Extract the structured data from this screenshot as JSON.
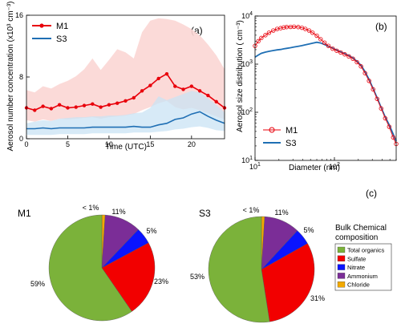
{
  "panels": {
    "a": "(a)",
    "b": "(b)",
    "c": "(c)"
  },
  "colors": {
    "m1": "#e8000b",
    "s3": "#1f6fb4",
    "m1_band": "#fbd6d4",
    "s3_band": "#c9e3f4",
    "overlap_band": "#d6cfe4",
    "total_organics": "#7bb23a",
    "sulfate": "#f20000",
    "nitrate": "#0a14ff",
    "ammonium": "#7b2d97",
    "chloride": "#f2a900"
  },
  "chart_data": [
    {
      "type": "line",
      "panel": "(a)",
      "xlabel": "Time (UTC)",
      "ylabel": "Aerosol number concentration (x10³ cm⁻³)",
      "xlim": [
        0,
        24
      ],
      "ylim": [
        0,
        16
      ],
      "xticks": [
        0,
        5,
        10,
        15,
        20
      ],
      "yticks": [
        0,
        8,
        16
      ],
      "legend": "top-left",
      "series": [
        {
          "name": "M1",
          "x": [
            0,
            1,
            2,
            3,
            4,
            5,
            6,
            7,
            8,
            9,
            10,
            11,
            12,
            13,
            14,
            15,
            16,
            17,
            18,
            19,
            20,
            21,
            22,
            23,
            24
          ],
          "y": [
            4.0,
            3.7,
            4.2,
            3.9,
            4.4,
            4.0,
            4.1,
            4.3,
            4.5,
            4.1,
            4.4,
            4.6,
            4.9,
            5.3,
            6.2,
            6.9,
            7.8,
            8.4,
            6.8,
            6.4,
            6.8,
            6.2,
            5.6,
            4.8,
            4.0
          ],
          "band_upper": [
            6.3,
            6.0,
            6.8,
            6.5,
            7.1,
            7.5,
            8.1,
            9.0,
            10.4,
            8.9,
            10.2,
            11.6,
            11.2,
            10.4,
            13.8,
            15.3,
            15.6,
            15.5,
            15.3,
            14.8,
            14.2,
            13.4,
            12.2,
            10.8,
            9.0
          ],
          "band_lower": [
            2.4,
            2.2,
            2.5,
            2.3,
            2.6,
            2.5,
            2.6,
            2.7,
            2.8,
            2.6,
            2.8,
            2.9,
            3.0,
            3.2,
            3.7,
            4.1,
            4.6,
            4.9,
            4.1,
            3.8,
            4.0,
            3.7,
            3.3,
            2.9,
            2.5
          ]
        },
        {
          "name": "S3",
          "x": [
            0,
            1,
            2,
            3,
            4,
            5,
            6,
            7,
            8,
            9,
            10,
            11,
            12,
            13,
            14,
            15,
            16,
            17,
            18,
            19,
            20,
            21,
            22,
            23,
            24
          ],
          "y": [
            1.3,
            1.3,
            1.4,
            1.3,
            1.4,
            1.4,
            1.4,
            1.4,
            1.5,
            1.5,
            1.5,
            1.5,
            1.5,
            1.6,
            1.5,
            1.5,
            1.8,
            2.0,
            2.5,
            2.7,
            3.2,
            3.5,
            2.9,
            2.4,
            2.0
          ],
          "band_upper": [
            2.0,
            2.2,
            2.4,
            2.3,
            2.6,
            2.7,
            2.8,
            2.8,
            2.9,
            2.9,
            3.0,
            3.0,
            3.1,
            3.3,
            3.4,
            4.0,
            5.5,
            5.0,
            5.4,
            5.8,
            6.2,
            6.0,
            5.2,
            4.4,
            3.4
          ],
          "band_lower": [
            0.5,
            0.5,
            0.5,
            0.5,
            0.6,
            0.6,
            0.6,
            0.6,
            0.7,
            0.7,
            0.7,
            0.7,
            0.7,
            0.8,
            0.8,
            0.8,
            0.9,
            1.0,
            1.2,
            1.3,
            1.5,
            1.6,
            1.4,
            1.1,
            1.0
          ]
        }
      ]
    },
    {
      "type": "line",
      "panel": "(b)",
      "xlabel": "Diameter (nm)",
      "ylabel": "Aerosol size distribution ( cm⁻³)",
      "x_scale": "log",
      "y_scale": "log",
      "xlim": [
        10,
        600
      ],
      "ylim": [
        10,
        10000
      ],
      "xticks": [
        10,
        100
      ],
      "yticks": [
        10,
        100,
        1000,
        10000
      ],
      "legend": "bottom-left",
      "series": [
        {
          "name": "M1",
          "x": [
            10,
            11,
            12,
            13.5,
            15,
            17,
            19,
            21,
            23,
            25,
            28,
            31,
            35,
            39,
            43,
            48,
            53,
            60,
            67,
            75,
            84,
            95,
            107,
            120,
            135,
            152,
            171,
            192,
            216,
            243,
            273,
            307,
            345,
            388,
            436,
            490,
            550,
            600
          ],
          "y": [
            2400,
            3000,
            3500,
            4000,
            4500,
            5000,
            5400,
            5600,
            5800,
            5900,
            5950,
            6000,
            5900,
            5700,
            5400,
            5000,
            4500,
            3900,
            3300,
            2800,
            2400,
            2100,
            1900,
            1750,
            1600,
            1450,
            1300,
            1100,
            900,
            650,
            450,
            300,
            190,
            120,
            75,
            50,
            30,
            22
          ]
        },
        {
          "name": "S3",
          "x": [
            10,
            11,
            12,
            13.5,
            15,
            17,
            19,
            21,
            23,
            25,
            28,
            31,
            35,
            39,
            43,
            48,
            53,
            60,
            67,
            75,
            84,
            95,
            107,
            120,
            135,
            152,
            171,
            192,
            216,
            243,
            273,
            307,
            345,
            388,
            436,
            490,
            550,
            600
          ],
          "y": [
            1400,
            1550,
            1680,
            1780,
            1850,
            1920,
            1980,
            2020,
            2080,
            2130,
            2200,
            2270,
            2350,
            2430,
            2520,
            2620,
            2720,
            2850,
            2750,
            2550,
            2350,
            2150,
            1950,
            1800,
            1650,
            1500,
            1350,
            1150,
            950,
            700,
            480,
            310,
            200,
            125,
            80,
            55,
            35,
            25
          ]
        }
      ]
    },
    {
      "type": "pie",
      "panel": "(c)",
      "title": "M1",
      "categories": [
        "Total organics",
        "Sulfate",
        "Nitrate",
        "Ammonium",
        "Chloride"
      ],
      "values": [
        59,
        23,
        5,
        11,
        1
      ],
      "labels": [
        "59%",
        "23%",
        "5%",
        "11%",
        "< 1%"
      ]
    },
    {
      "type": "pie",
      "panel": "(c)",
      "title": "S3",
      "categories": [
        "Total organics",
        "Sulfate",
        "Nitrate",
        "Ammonium",
        "Chloride"
      ],
      "values": [
        53,
        31,
        5,
        11,
        1
      ],
      "labels": [
        "53%",
        "31%",
        "5%",
        "11%",
        "< 1%"
      ]
    }
  ],
  "legend_c": {
    "title_line1": "Bulk Chemical",
    "title_line2": "composition",
    "items": [
      {
        "label": "Total organics",
        "color": "#7bb23a"
      },
      {
        "label": "Sulfate",
        "color": "#f20000"
      },
      {
        "label": "Nitrate",
        "color": "#0a14ff"
      },
      {
        "label": "Ammonium",
        "color": "#7b2d97"
      },
      {
        "label": "Chloride",
        "color": "#f2a900"
      }
    ]
  }
}
